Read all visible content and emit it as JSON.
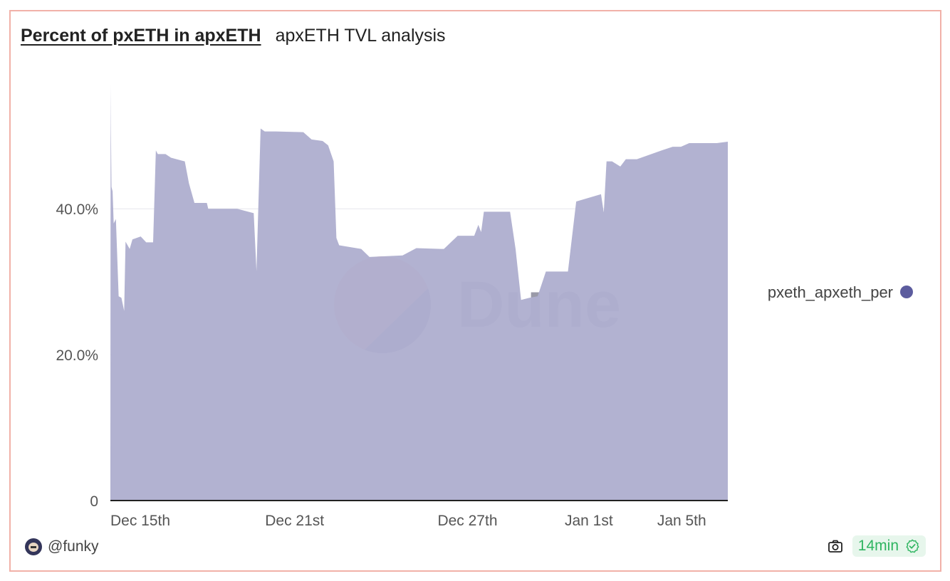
{
  "header": {
    "title": "Percent of pxETH in apxETH",
    "subtitle": "apxETH TVL analysis"
  },
  "footer": {
    "author": "@funky",
    "freshness": "14min"
  },
  "watermark": "Dune",
  "colors": {
    "area": "#afafcf",
    "legend_dot": "#5c5c9e",
    "border": "#f1b1a8",
    "badge_text": "#2fb561",
    "badge_bg": "#e7f6ec"
  },
  "chart_data": {
    "type": "area",
    "title": "Percent of pxETH in apxETH",
    "xlabel": "",
    "ylabel": "",
    "ylim": [
      0,
      57.4
    ],
    "y_ticks": [
      {
        "value": 0,
        "label": "0"
      },
      {
        "value": 20,
        "label": "20.0%"
      },
      {
        "value": 40,
        "label": "40.0%"
      }
    ],
    "x_ticks": [
      {
        "day": 0,
        "label": "Dec 15th"
      },
      {
        "day": 6,
        "label": "Dec 21st"
      },
      {
        "day": 12,
        "label": "Dec 27th"
      },
      {
        "day": 17,
        "label": "Jan 1st"
      },
      {
        "day": 21,
        "label": "Jan 5th"
      }
    ],
    "grid": true,
    "legend": {
      "position": "right",
      "entries": [
        "pxeth_apxeth_per"
      ]
    },
    "series": [
      {
        "name": "pxeth_apxeth_per",
        "points": [
          [
            0.0,
            6.0
          ],
          [
            0.01,
            57.0
          ],
          [
            0.02,
            51.0
          ],
          [
            0.04,
            43.0
          ],
          [
            0.08,
            42.4
          ],
          [
            0.12,
            38.0
          ],
          [
            0.2,
            38.6
          ],
          [
            0.3,
            28.0
          ],
          [
            0.4,
            27.8
          ],
          [
            0.5,
            26.0
          ],
          [
            0.55,
            35.5
          ],
          [
            0.7,
            34.5
          ],
          [
            0.8,
            35.8
          ],
          [
            1.1,
            36.2
          ],
          [
            1.3,
            35.4
          ],
          [
            1.55,
            35.4
          ],
          [
            1.65,
            48.0
          ],
          [
            1.72,
            47.5
          ],
          [
            2.0,
            47.5
          ],
          [
            2.2,
            47.0
          ],
          [
            2.7,
            46.5
          ],
          [
            2.85,
            43.5
          ],
          [
            3.05,
            40.8
          ],
          [
            3.5,
            40.8
          ],
          [
            3.55,
            40.0
          ],
          [
            4.6,
            40.0
          ],
          [
            5.2,
            39.4
          ],
          [
            5.3,
            31.5
          ],
          [
            5.45,
            51.0
          ],
          [
            5.6,
            50.6
          ],
          [
            6.0,
            50.6
          ],
          [
            7.0,
            50.5
          ],
          [
            7.3,
            49.5
          ],
          [
            7.7,
            49.3
          ],
          [
            7.9,
            48.7
          ],
          [
            8.1,
            46.5
          ],
          [
            8.2,
            36.0
          ],
          [
            8.3,
            35.0
          ],
          [
            9.1,
            34.5
          ],
          [
            9.4,
            33.4
          ],
          [
            10.6,
            33.6
          ],
          [
            11.1,
            34.6
          ],
          [
            12.0,
            34.5
          ],
          [
            12.1,
            34.5
          ],
          [
            12.6,
            36.3
          ],
          [
            13.2,
            36.3
          ],
          [
            13.35,
            37.8
          ],
          [
            13.45,
            36.8
          ],
          [
            13.55,
            39.6
          ],
          [
            13.8,
            39.6
          ],
          [
            14.5,
            39.6
          ],
          [
            14.7,
            34.5
          ],
          [
            14.9,
            27.5
          ],
          [
            15.2,
            27.8
          ],
          [
            15.5,
            28.0
          ],
          [
            15.8,
            31.4
          ],
          [
            16.6,
            31.4
          ],
          [
            16.9,
            41.0
          ],
          [
            17.8,
            42.0
          ],
          [
            17.9,
            39.5
          ],
          [
            18.0,
            46.5
          ],
          [
            18.2,
            46.5
          ],
          [
            18.5,
            45.8
          ],
          [
            18.7,
            46.8
          ],
          [
            19.1,
            46.8
          ],
          [
            20.0,
            48.0
          ],
          [
            20.4,
            48.5
          ],
          [
            20.7,
            48.5
          ],
          [
            21.0,
            49.0
          ],
          [
            22.0,
            49.0
          ],
          [
            22.4,
            49.2
          ]
        ]
      }
    ],
    "x_domain": [
      0,
      22.4
    ]
  }
}
